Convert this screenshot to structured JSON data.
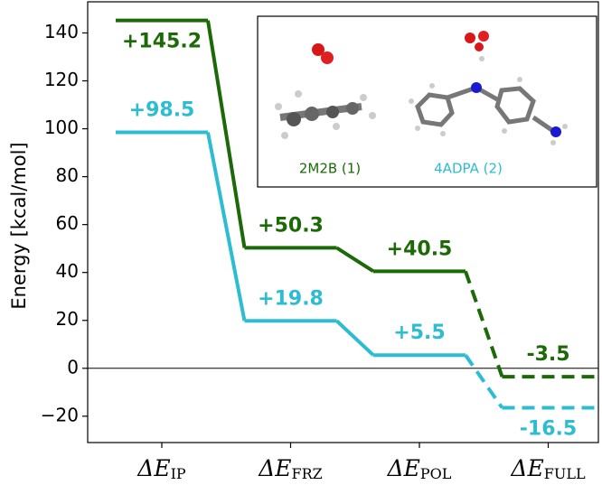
{
  "chart_data": {
    "type": "energy-levels",
    "ylabel": "Energy [kcal/mol]",
    "category_symbol": "ΔE",
    "categories": [
      "IP",
      "FRZ",
      "POL",
      "FULL"
    ],
    "dashed": [
      false,
      false,
      false,
      true
    ],
    "series": [
      {
        "name": "2M2B (1)",
        "color": "#1c6a07",
        "values": [
          145.2,
          50.3,
          40.5,
          -3.5
        ],
        "value_labels": [
          "+145.2",
          "+50.3",
          "+40.5",
          "-3.5"
        ]
      },
      {
        "name": "4ADPA (2)",
        "color": "#2dbdd2",
        "values": [
          98.5,
          19.8,
          5.5,
          -16.5
        ],
        "value_labels": [
          "+98.5",
          "+19.8",
          "+5.5",
          "-16.5"
        ]
      }
    ],
    "ylim": [
      -31,
      153
    ],
    "yticks": [
      {
        "value": -20,
        "label": "−20"
      },
      0,
      20,
      40,
      60,
      80,
      100,
      120,
      140
    ]
  }
}
